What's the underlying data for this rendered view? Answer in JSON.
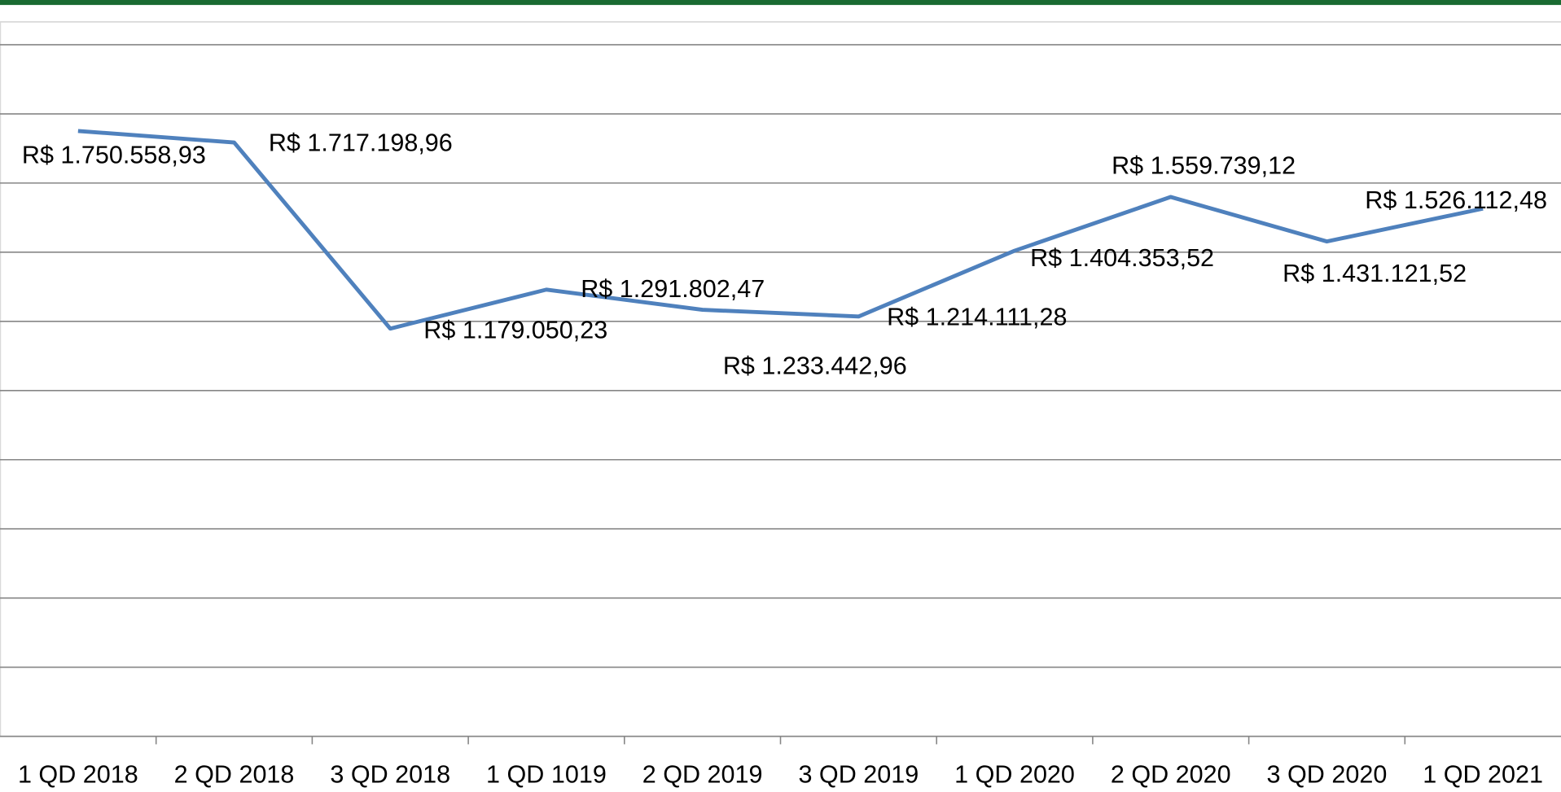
{
  "chart_data": {
    "type": "line",
    "categories": [
      "1 QD 2018",
      "2 QD 2018",
      "3 QD 2018",
      "1 QD 1019",
      "2 QD 2019",
      "3 QD 2019",
      "1 QD 2020",
      "2 QD 2020",
      "3 QD 2020",
      "1 QD 2021"
    ],
    "series": [
      {
        "color": "#4f81bd",
        "values": [
          1750558.93,
          1717198.96,
          1179050.23,
          1291802.47,
          1233442.96,
          1214111.28,
          1404353.52,
          1559739.12,
          1431121.52,
          1526112.48
        ],
        "value_labels": [
          "R$ 1.750.558,93",
          "R$ 1.717.198,96",
          "R$ 1.179.050,23",
          "R$ 1.291.802,47",
          "R$ 1.233.442,96",
          "R$ 1.214.111,28",
          "R$ 1.404.353,52",
          "R$ 1.559.739,12",
          "R$ 1.431.121,52",
          "R$ 1.526.112,48"
        ]
      }
    ],
    "ylim": [
      0,
      2000000
    ],
    "yticks": [
      0,
      200000,
      400000,
      600000,
      800000,
      1000000,
      1200000,
      1400000,
      1600000,
      1800000,
      2000000
    ],
    "grid": true
  }
}
